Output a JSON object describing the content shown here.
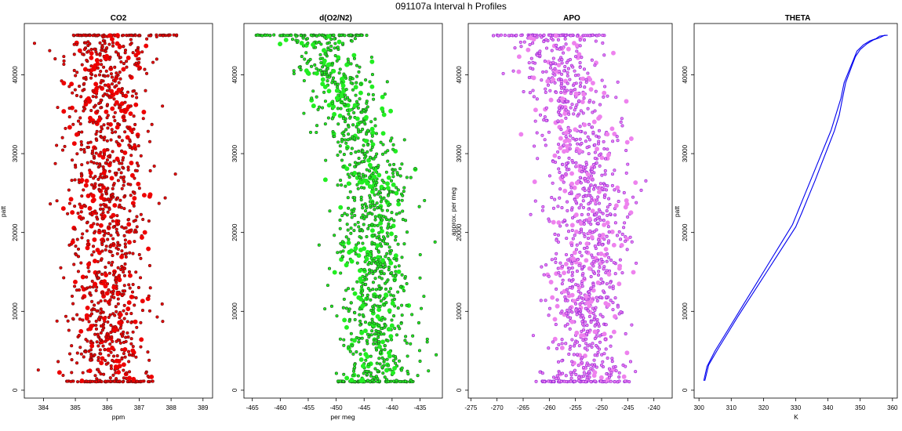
{
  "page_title": "091107a   Interval h Profiles",
  "chart_data": [
    {
      "type": "scatter",
      "title": "CO2",
      "xlabel": "ppm",
      "ylabel": "patt",
      "xticks": [
        "384",
        "385",
        "386",
        "387",
        "388",
        "389"
      ],
      "yticks": [
        "0",
        "10000",
        "20000",
        "30000",
        "40000"
      ],
      "xlim": [
        383.4,
        389.3
      ],
      "ylim": [
        -1000,
        46500
      ],
      "fill_color": "#ee0000",
      "edge_color": "#7a1010",
      "center": 386.0,
      "spread": 0.65,
      "top_band": [
        384.9,
        388.3
      ],
      "y_range": [
        1100,
        45000
      ]
    },
    {
      "type": "scatter",
      "title": "d(O2/N2)",
      "xlabel": "per meg",
      "ylabel": "",
      "xticks": [
        "-465",
        "-460",
        "-455",
        "-450",
        "-445",
        "-440",
        "-435"
      ],
      "yticks": [
        "0",
        "10000",
        "20000",
        "30000",
        "40000"
      ],
      "xlim": [
        -466.5,
        -431.0
      ],
      "ylim": [
        -1000,
        46500
      ],
      "fill_color": "#22ee22",
      "edge_color": "#1d6b1d",
      "center": -443.0,
      "spread": 3.2,
      "top_band": [
        -464.5,
        -444.5
      ],
      "y_range": [
        1100,
        45000
      ]
    },
    {
      "type": "scatter",
      "title": "APO",
      "xlabel": "",
      "ylabel": "approx. per meg",
      "xticks": [
        "-275",
        "-270",
        "-265",
        "-260",
        "-255",
        "-250",
        "-245",
        "-240"
      ],
      "yticks": [
        "0",
        "10000",
        "20000",
        "30000",
        "40000"
      ],
      "xlim": [
        -275.5,
        -236.5
      ],
      "ylim": [
        -1000,
        46500
      ],
      "fill_color": "#ee82ee",
      "edge_color": "#9a2fd8",
      "center": -253.0,
      "spread": 3.8,
      "top_band": [
        -271.0,
        -249.0
      ],
      "y_range": [
        1100,
        45000
      ]
    },
    {
      "type": "line",
      "title": "THETA",
      "xlabel": "K",
      "ylabel": "patt",
      "xticks": [
        "300",
        "310",
        "320",
        "330",
        "340",
        "350",
        "360"
      ],
      "yticks": [
        "0",
        "10000",
        "20000",
        "30000",
        "40000"
      ],
      "xlim": [
        298.5,
        361.5
      ],
      "ylim": [
        -1000,
        46500
      ],
      "line_color": "#0000ee",
      "series": [
        {
          "x": [
            301.5,
            302.5,
            305,
            308,
            311,
            314,
            317,
            320,
            323,
            326,
            329,
            331,
            333,
            335,
            337,
            339,
            341,
            342.5,
            344,
            345,
            346,
            347,
            348,
            349,
            351,
            353,
            355,
            356,
            358
          ],
          "y": [
            1200,
            3000,
            5000,
            7000,
            9000,
            11000,
            13000,
            15000,
            17000,
            19000,
            21000,
            23000,
            25000,
            27000,
            29000,
            31000,
            33000,
            35000,
            37000,
            39000,
            40000,
            41000,
            42000,
            43000,
            43800,
            44300,
            44600,
            44900,
            45000
          ]
        },
        {
          "x": [
            301.8,
            303,
            306,
            309,
            312,
            315,
            318,
            321,
            324,
            327,
            330,
            332,
            334,
            336,
            338,
            340,
            342,
            343.5,
            344.5,
            345.5,
            346.5,
            347.5,
            348.5,
            350,
            352,
            354,
            356,
            357.5,
            358.5
          ],
          "y": [
            1200,
            3200,
            5300,
            7300,
            9300,
            11200,
            13100,
            15000,
            16900,
            18800,
            20700,
            22600,
            24600,
            26600,
            28700,
            30800,
            32900,
            34900,
            37000,
            39000,
            40100,
            41200,
            42300,
            43200,
            43900,
            44400,
            44700,
            45000,
            45000
          ]
        }
      ]
    }
  ]
}
